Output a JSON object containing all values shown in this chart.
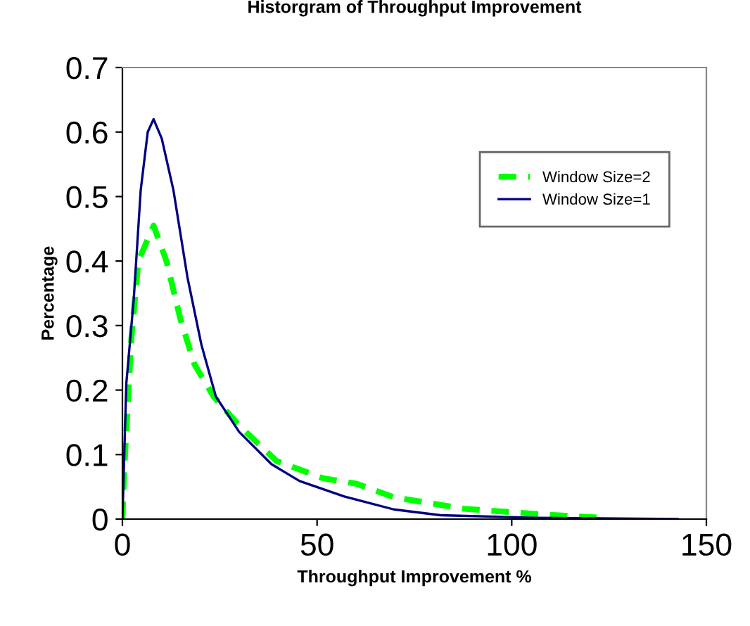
{
  "chart_data": {
    "type": "line",
    "title": "Historgram of Throughput Improvement",
    "xlabel": "Throughput Improvement %",
    "ylabel": "Percentage",
    "xlim": [
      0,
      150
    ],
    "xticks": [
      0,
      50,
      100,
      150
    ],
    "ylim": [
      0,
      0.7
    ],
    "yticks": [
      0,
      0.1,
      0.2,
      0.3,
      0.4,
      0.5,
      0.6,
      0.7
    ],
    "legend": "top right",
    "grid": false,
    "series": [
      {
        "name": "Window Size=2",
        "color": "#00ff00",
        "line_style": "dashed",
        "x": [
          0,
          0.5,
          2.3,
          4.1,
          8,
          11.3,
          14.9,
          18.5,
          23.4,
          30,
          39.6,
          51.7,
          60,
          69.7,
          87.8,
          106,
          123
        ],
        "values": [
          0,
          0.08,
          0.28,
          0.4,
          0.455,
          0.4,
          0.31,
          0.24,
          0.19,
          0.145,
          0.09,
          0.063,
          0.055,
          0.034,
          0.016,
          0.008,
          0.002
        ]
      },
      {
        "name": "Window Size=1",
        "color": "#000080",
        "line_style": "solid",
        "x": [
          0,
          1,
          2.9,
          4.7,
          6.5,
          8,
          10.1,
          13.1,
          16.7,
          20.3,
          24,
          30,
          38.3,
          45.5,
          57,
          69.7,
          81.7,
          106,
          142.6
        ],
        "values": [
          0,
          0.21,
          0.34,
          0.51,
          0.6,
          0.62,
          0.59,
          0.51,
          0.375,
          0.27,
          0.19,
          0.135,
          0.085,
          0.059,
          0.035,
          0.015,
          0.006,
          0.002,
          0
        ]
      }
    ]
  }
}
